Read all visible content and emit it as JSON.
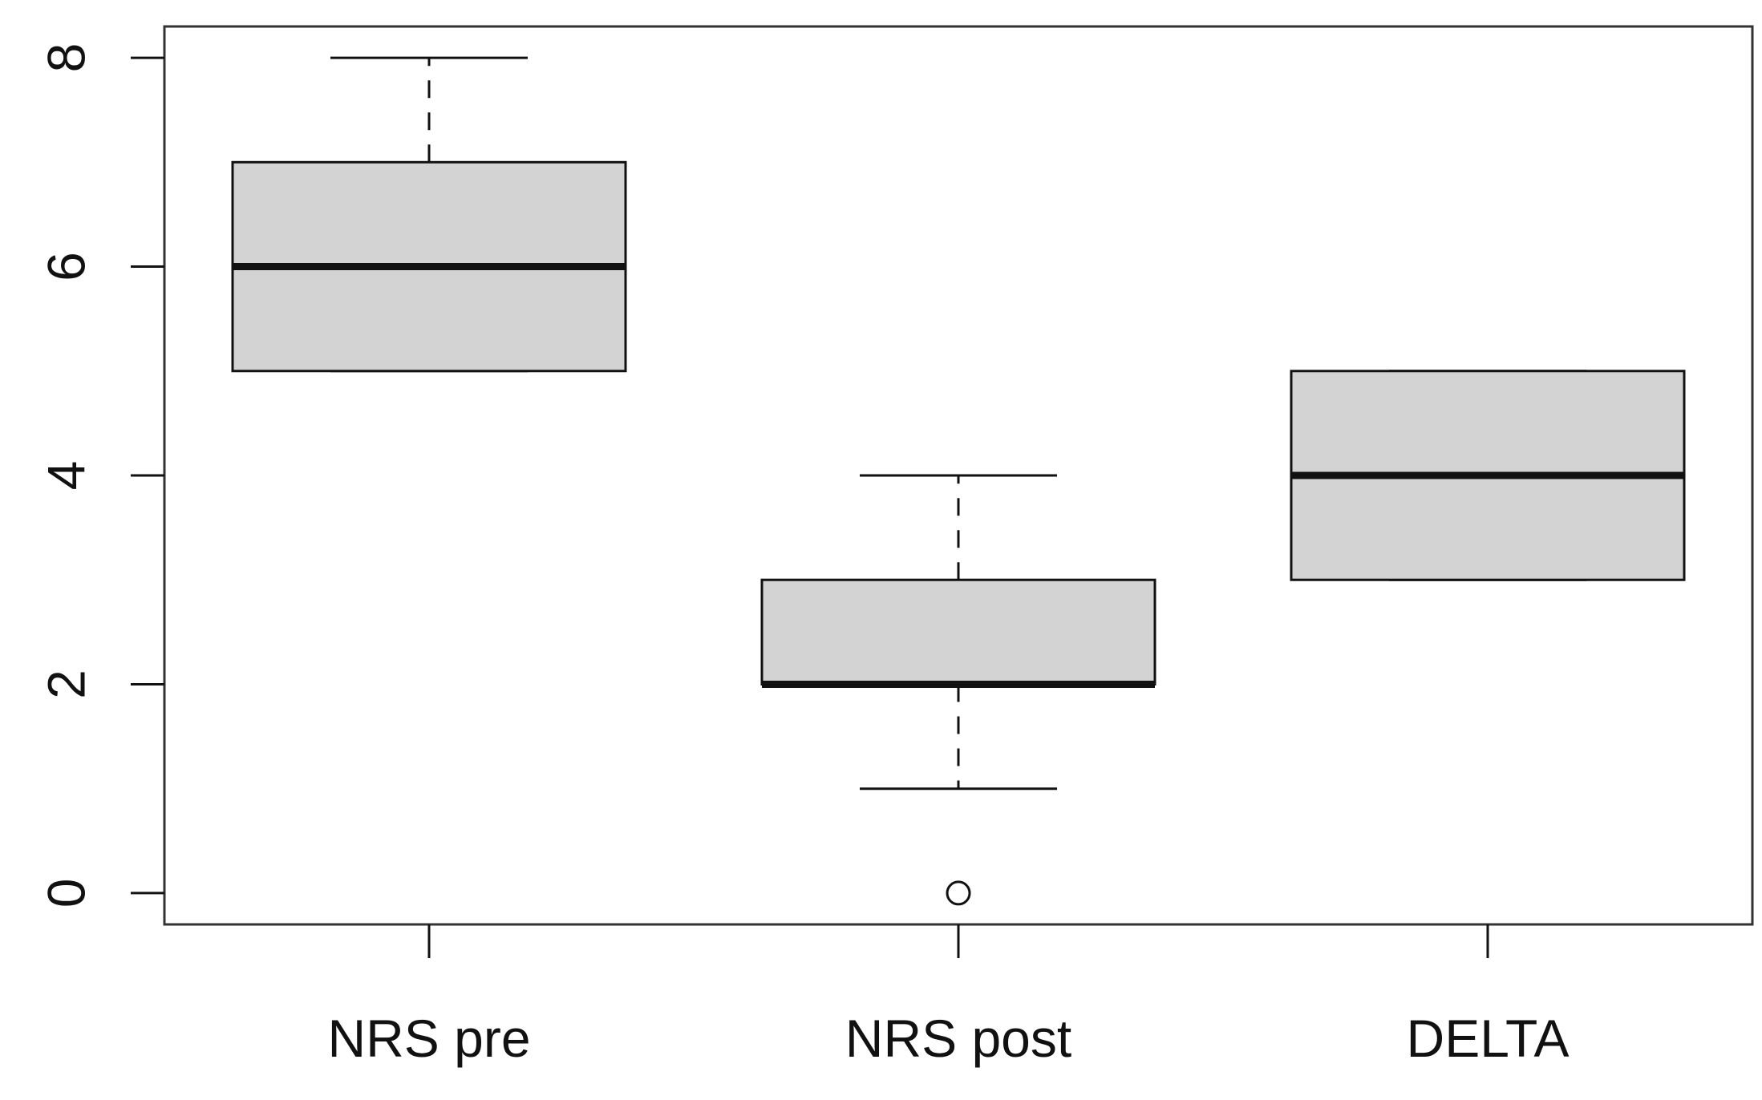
{
  "chart_data": {
    "type": "boxplot",
    "categories": [
      "NRS pre",
      "NRS post",
      "DELTA"
    ],
    "boxes": [
      {
        "min": 5,
        "q1": 5,
        "median": 6,
        "q3": 7,
        "max": 8,
        "outliers": []
      },
      {
        "min": 1,
        "q1": 2,
        "median": 2,
        "q3": 3,
        "max": 4,
        "outliers": [
          0
        ]
      },
      {
        "min": 3,
        "q1": 3,
        "median": 4,
        "q3": 5,
        "max": 5,
        "outliers": []
      }
    ],
    "ylim": [
      -0.3,
      8.3
    ],
    "yticks": [
      0,
      2,
      4,
      6,
      8
    ],
    "ytick_labels": [
      "0",
      "2",
      "4",
      "6",
      "8"
    ],
    "grid": false,
    "box_fill": "#d3d3d3",
    "line_color": "#111111"
  }
}
